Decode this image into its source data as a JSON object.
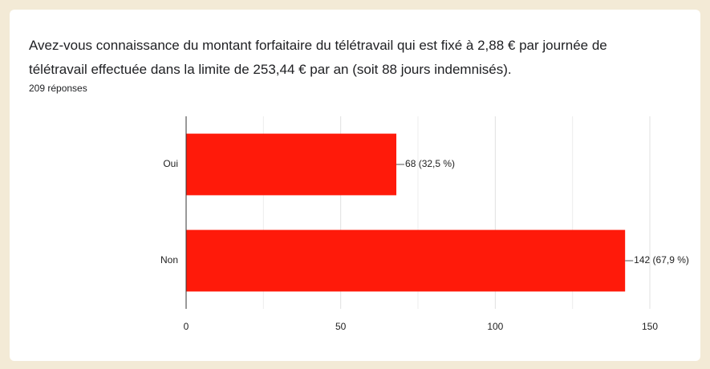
{
  "chart_data": {
    "type": "bar",
    "orientation": "horizontal",
    "title_lines": [
      "Avez-vous connaissance du montant forfaitaire du télétravail qui est fixé à 2,88 € par journée de",
      "télétravail effectuée dans la limite de 253,44 € par an (soit 88 jours indemnisés)."
    ],
    "subtitle": "209 réponses",
    "categories": [
      "Oui",
      "Non"
    ],
    "values": [
      68,
      142
    ],
    "value_labels": [
      "68 (32,5 %)",
      "142 (67,9 %)"
    ],
    "color": "#ff1a0a",
    "xlim": [
      0,
      150
    ],
    "xticks": [
      0,
      50,
      100,
      150
    ],
    "minor_xticks": [
      25,
      75,
      125
    ],
    "grid": true
  }
}
